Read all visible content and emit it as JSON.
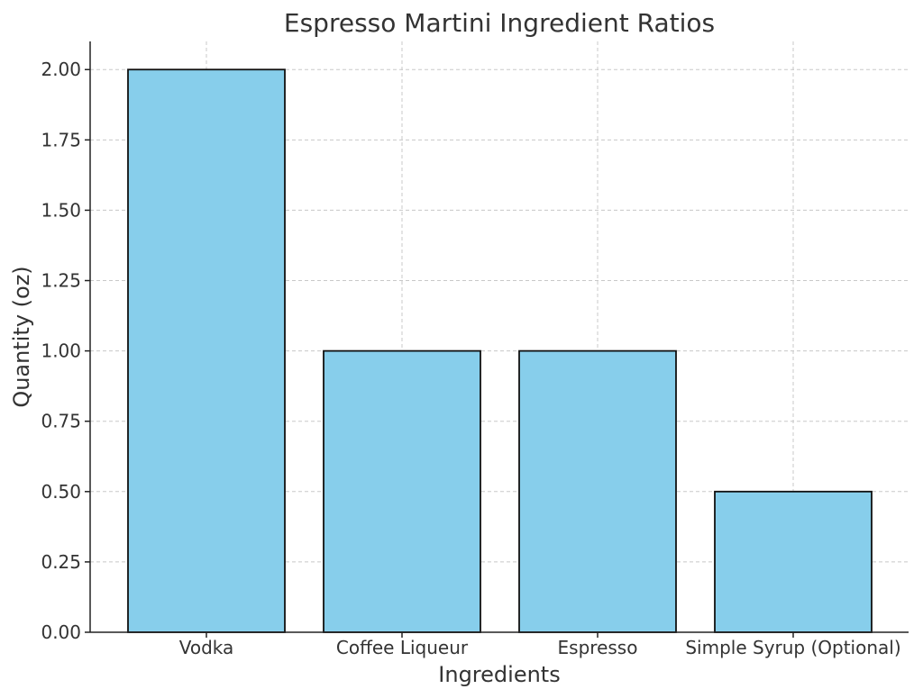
{
  "chart_data": {
    "type": "bar",
    "title": "Espresso Martini Ingredient Ratios",
    "xlabel": "Ingredients",
    "ylabel": "Quantity (oz)",
    "categories": [
      "Vodka",
      "Coffee Liqueur",
      "Espresso",
      "Simple Syrup (Optional)"
    ],
    "values": [
      2.0,
      1.0,
      1.0,
      0.5
    ],
    "ylim": [
      0,
      2.1
    ],
    "yticks": [
      "0.00",
      "0.25",
      "0.50",
      "0.75",
      "1.00",
      "1.25",
      "1.50",
      "1.75",
      "2.00"
    ],
    "grid": true,
    "bar_color": "#87ceeb",
    "edge_color": "#111111"
  }
}
